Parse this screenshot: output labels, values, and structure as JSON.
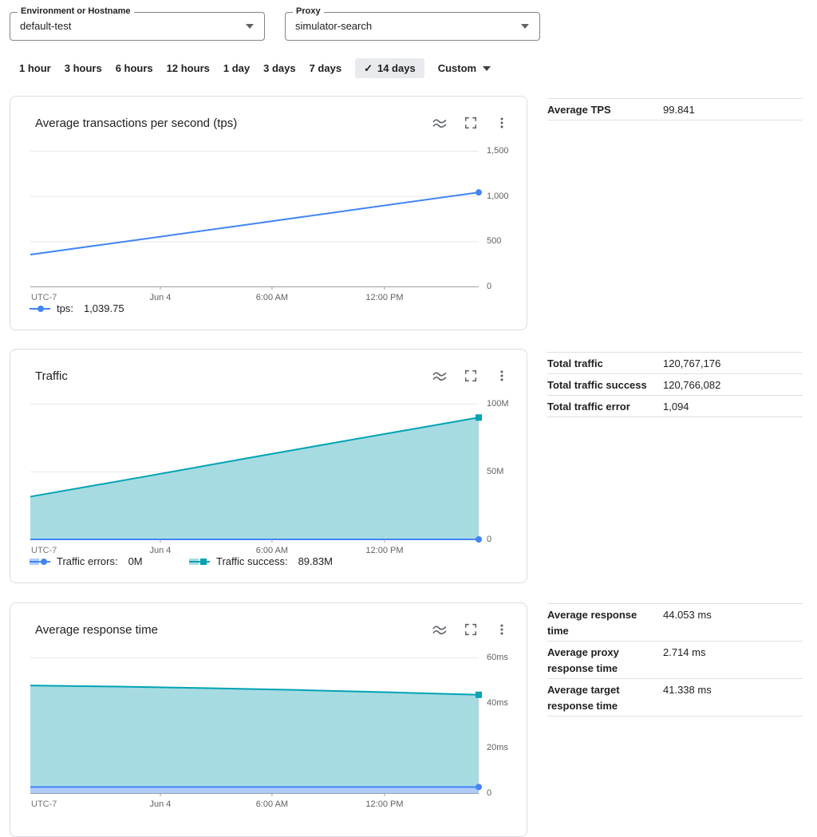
{
  "icons": {
    "check": "✓"
  },
  "colors": {
    "blue": "#4285f4",
    "blue_fill": "#aecbfa",
    "teal": "#00a3b4",
    "teal_fill": "#a6dbe2",
    "selected_tab_bg": "#e8eaed",
    "card_border": "#dadce0",
    "grid_line": "#e8e8e8",
    "axis_line": "#9aa0a6"
  },
  "filters": {
    "environment": {
      "label": "Environment or Hostname",
      "value": "default-test"
    },
    "proxy": {
      "label": "Proxy",
      "value": "simulator-search"
    }
  },
  "time_range": {
    "options": [
      "1 hour",
      "3 hours",
      "6 hours",
      "12 hours",
      "1 day",
      "3 days",
      "7 days",
      "14 days",
      "Custom"
    ],
    "selected": "14 days",
    "dropdown_option": "Custom"
  },
  "cards": [
    {
      "title": "Average transactions per second (tps)",
      "legend": [
        {
          "label": "tps:",
          "value": "1,039.75"
        }
      ]
    },
    {
      "title": "Traffic",
      "legend": [
        {
          "label": "Traffic errors:",
          "value": "0M"
        },
        {
          "label": "Traffic success:",
          "value": "89.83M"
        }
      ]
    },
    {
      "title": "Average response time",
      "legend": []
    }
  ],
  "stats_tables": [
    {
      "rows": [
        {
          "label": "Average TPS",
          "value": "99.841"
        }
      ]
    },
    {
      "rows": [
        {
          "label": "Total traffic",
          "value": "120,767,176"
        },
        {
          "label": "Total traffic success",
          "value": "120,766,082"
        },
        {
          "label": "Total traffic error",
          "value": "1,094"
        }
      ]
    },
    {
      "rows": [
        {
          "label": "Average response time",
          "value": "44.053 ms"
        },
        {
          "label": "Average proxy response time",
          "value": "2.714 ms"
        },
        {
          "label": "Average target response time",
          "value": "41.338 ms"
        }
      ]
    }
  ],
  "chart_data": [
    {
      "type": "line",
      "title": "Average transactions per second (tps)",
      "timezone_label": "UTC-7",
      "x_ticks": [
        {
          "pos": 0.29,
          "label": "Jun 4"
        },
        {
          "pos": 0.539,
          "label": "6:00 AM"
        },
        {
          "pos": 0.79,
          "label": "12:00 PM"
        }
      ],
      "ylim": [
        0,
        1500
      ],
      "y_ticks": [
        {
          "value": 0,
          "label": "0"
        },
        {
          "value": 500,
          "label": "500"
        },
        {
          "value": 1000,
          "label": "1,000"
        },
        {
          "value": 1500,
          "label": "1,500"
        }
      ],
      "series": [
        {
          "name": "tps",
          "type": "line",
          "color": "#4285f4",
          "marker": "circle",
          "x": [
            0,
            0.25,
            0.5,
            0.75,
            1
          ],
          "y": [
            352,
            523,
            695,
            868,
            1039.75
          ],
          "last_value": "1,039.75"
        }
      ]
    },
    {
      "type": "area",
      "title": "Traffic",
      "timezone_label": "UTC-7",
      "x_ticks": [
        {
          "pos": 0.29,
          "label": "Jun 4"
        },
        {
          "pos": 0.539,
          "label": "6:00 AM"
        },
        {
          "pos": 0.79,
          "label": "12:00 PM"
        }
      ],
      "ylim": [
        0,
        100000000
      ],
      "y_ticks": [
        {
          "value": 0,
          "label": "0"
        },
        {
          "value": 50000000,
          "label": "50M"
        },
        {
          "value": 100000000,
          "label": "100M"
        }
      ],
      "series": [
        {
          "name": "Traffic success",
          "type": "area",
          "color": "#00a3b4",
          "fill": "#a6dbe2",
          "marker": "square",
          "x": [
            0,
            0.25,
            0.5,
            0.75,
            1
          ],
          "y": [
            31500000,
            46000000,
            60800000,
            75400000,
            89830000
          ],
          "last_value": "89.83M"
        },
        {
          "name": "Traffic errors",
          "type": "line",
          "color": "#4285f4",
          "marker": "circle",
          "x": [
            0,
            1
          ],
          "y": [
            0,
            0
          ],
          "last_value": "0M"
        }
      ]
    },
    {
      "type": "area",
      "title": "Average response time",
      "timezone_label": "UTC-7",
      "x_ticks": [
        {
          "pos": 0.29,
          "label": "Jun 4"
        },
        {
          "pos": 0.539,
          "label": "6:00 AM"
        },
        {
          "pos": 0.79,
          "label": "12:00 PM"
        }
      ],
      "ylim": [
        0,
        60
      ],
      "y_ticks": [
        {
          "value": 0,
          "label": "0"
        },
        {
          "value": 20,
          "label": "20ms"
        },
        {
          "value": 40,
          "label": "40ms"
        },
        {
          "value": 60,
          "label": "60ms"
        }
      ],
      "series": [
        {
          "name": "Average target response time",
          "type": "area",
          "color": "#00a3b4",
          "fill": "#a6dbe2",
          "marker": "square",
          "x": [
            0,
            0.2,
            0.4,
            0.6,
            0.8,
            1
          ],
          "y": [
            47.6,
            47.1,
            46.4,
            45.6,
            44.6,
            43.5
          ]
        },
        {
          "name": "Average proxy response time",
          "type": "area",
          "color": "#4285f4",
          "fill": "#aecbfa",
          "marker": "circle",
          "x": [
            0,
            1
          ],
          "y": [
            2.7,
            2.7
          ]
        }
      ]
    }
  ]
}
